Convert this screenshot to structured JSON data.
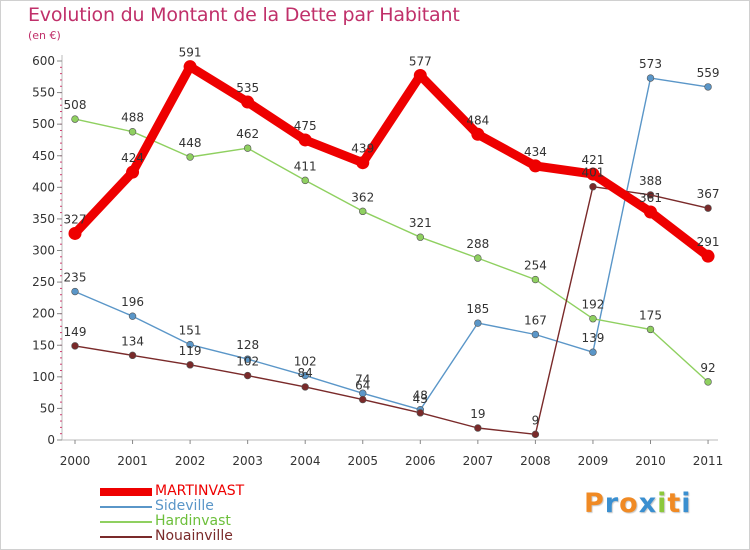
{
  "title": "Evolution du Montant de la Dette par Habitant",
  "subtitle": "(en €)",
  "logo": {
    "text": "Proxiti",
    "letter_colors": [
      "#f08a24",
      "#3a8fd0",
      "#f08a24",
      "#3a8fd0",
      "#8cc83c",
      "#f08a24",
      "#3a8fd0"
    ]
  },
  "chart_data": {
    "type": "line",
    "x": [
      "2000",
      "2001",
      "2002",
      "2003",
      "2004",
      "2005",
      "2006",
      "2007",
      "2008",
      "2009",
      "2010",
      "2011"
    ],
    "ylim": [
      0,
      600
    ],
    "yticks": [
      0,
      50,
      100,
      150,
      200,
      250,
      300,
      350,
      400,
      450,
      500,
      550,
      600
    ],
    "grid": false,
    "legend_position": "bottom-left",
    "series": [
      {
        "name": "MARTINVAST",
        "color": "#ee0000",
        "values": [
          327,
          424,
          591,
          535,
          475,
          439,
          577,
          484,
          434,
          421,
          361,
          291
        ],
        "labels": [
          "327",
          "424",
          "591",
          "535",
          "475",
          "439",
          "577",
          "484",
          "434",
          "421",
          "361",
          "291"
        ]
      },
      {
        "name": "Sideville",
        "color": "#5a96c8",
        "values": [
          235,
          196,
          151,
          128,
          102,
          74,
          48,
          185,
          167,
          139,
          573,
          559
        ],
        "labels": [
          "235",
          "196",
          "151",
          "128",
          "102",
          "74",
          "48",
          "185",
          "167",
          "139",
          "573",
          "559"
        ]
      },
      {
        "name": "Hardinvast",
        "color": "#8fd060",
        "values": [
          508,
          488,
          448,
          462,
          411,
          362,
          321,
          288,
          254,
          192,
          175,
          92
        ],
        "labels": [
          "508",
          "488",
          "448",
          "462",
          "411",
          "362",
          "321",
          "288",
          "254",
          "192",
          "175",
          "92"
        ]
      },
      {
        "name": "Nouainville",
        "color": "#7a2a2a",
        "values": [
          149,
          134,
          119,
          102,
          84,
          64,
          43,
          19,
          9,
          401,
          388,
          367
        ],
        "labels": [
          "149",
          "134",
          "119",
          "102",
          "84",
          "64",
          "43",
          "19",
          "9",
          "401",
          "388",
          "367"
        ]
      }
    ]
  }
}
